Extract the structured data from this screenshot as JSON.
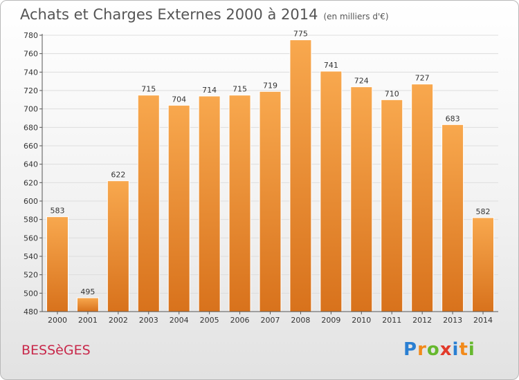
{
  "chart_data": {
    "type": "bar",
    "title": "Achats et Charges Externes 2000 à 2014",
    "subtitle": "(en milliers d'€)",
    "categories": [
      "2000",
      "2001",
      "2002",
      "2003",
      "2004",
      "2005",
      "2006",
      "2007",
      "2008",
      "2009",
      "2010",
      "2011",
      "2012",
      "2013",
      "2014"
    ],
    "values": [
      583,
      495,
      622,
      715,
      704,
      714,
      715,
      719,
      775,
      741,
      724,
      710,
      727,
      683,
      582
    ],
    "ylim": [
      480,
      780
    ],
    "yticks": [
      480,
      500,
      520,
      540,
      560,
      580,
      600,
      620,
      640,
      660,
      680,
      700,
      720,
      740,
      760,
      780
    ],
    "grid": true,
    "legend": "none",
    "bar_color_top": "#f8a84e",
    "bar_color_bottom": "#d8721c"
  },
  "footer": {
    "town": "BESSèGES",
    "logo": {
      "letters": [
        "P",
        "r",
        "o",
        "x",
        "i",
        "t",
        "i"
      ],
      "colors": [
        "#2a7fd2",
        "#f28a1a",
        "#66b82e",
        "#e23a2a",
        "#2a7fd2",
        "#f28a1a",
        "#66b82e"
      ]
    }
  }
}
